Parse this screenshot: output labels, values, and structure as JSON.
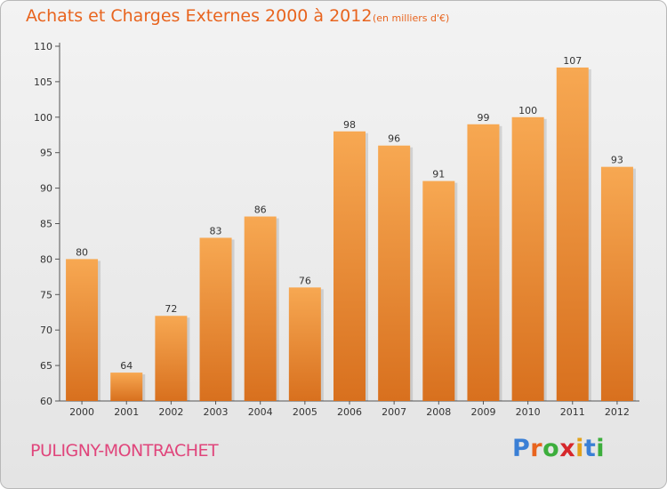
{
  "header": {
    "title": "Achats et Charges Externes 2000 à 2012",
    "subtitle": "(en milliers d'€)"
  },
  "footer": {
    "place": "PULIGNY-MONTRACHET",
    "logo_letters": [
      "P",
      "r",
      "o",
      "x",
      "i",
      "t",
      "i"
    ],
    "logo_colors": [
      "#3a7fd5",
      "#e8641e",
      "#3cae3c",
      "#d6272b",
      "#e3a21a",
      "#3a7fd5",
      "#3cae3c"
    ]
  },
  "colors": {
    "bar_top": "#f7a852",
    "bar_bottom": "#d8701e",
    "title": "#e8641e",
    "place": "#e0457b"
  },
  "chart_data": {
    "type": "bar",
    "categories": [
      "2000",
      "2001",
      "2002",
      "2003",
      "2004",
      "2005",
      "2006",
      "2007",
      "2008",
      "2009",
      "2010",
      "2011",
      "2012"
    ],
    "values": [
      80,
      64,
      72,
      83,
      86,
      76,
      98,
      96,
      91,
      99,
      100,
      107,
      93
    ],
    "ylim": [
      60,
      110
    ],
    "yticks": [
      60,
      65,
      70,
      75,
      80,
      85,
      90,
      95,
      100,
      105,
      110
    ],
    "grid": false,
    "data_labels": true
  }
}
